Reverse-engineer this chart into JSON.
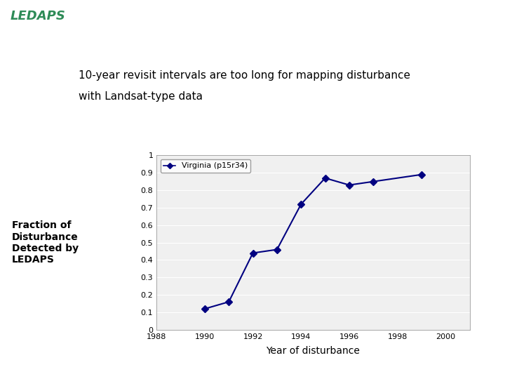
{
  "title_line1": "10-year revisit intervals are too long for mapping disturbance",
  "title_line2": "with Landsat-type data",
  "title_fontsize": 11,
  "ledaps_label": "LEDAPS",
  "xlabel": "Year of disturbance",
  "ylabel_lines": [
    "Fraction of",
    "Disturbance",
    "Detected by",
    "LEDAPS"
  ],
  "ylabel_fontsize": 10,
  "xlabel_fontsize": 10,
  "legend_label": "Virginia (p15r34)",
  "x_data": [
    1990,
    1991,
    1992,
    1993,
    1994,
    1995,
    1996,
    1997,
    1999
  ],
  "y_data": [
    0.12,
    0.16,
    0.44,
    0.46,
    0.72,
    0.87,
    0.83,
    0.85,
    0.89
  ],
  "line_color": "#000080",
  "marker": "D",
  "marker_size": 5,
  "xlim": [
    1988,
    2001
  ],
  "ylim": [
    0,
    1.0
  ],
  "xticks": [
    1988,
    1990,
    1992,
    1994,
    1996,
    1998,
    2000
  ],
  "ytick_labels": [
    "0",
    "0.1",
    "0.2",
    "0.3",
    "0.4",
    "0.5",
    "0.6",
    "0.7",
    "0.8",
    "0.9",
    "1"
  ],
  "yticks": [
    0,
    0.1,
    0.2,
    0.3,
    0.4,
    0.5,
    0.6,
    0.7,
    0.8,
    0.9,
    1.0
  ],
  "header_bg_color": "#555555",
  "bg_color": "#ffffff",
  "plot_bg_color": "#f0f0f0",
  "grid_color": "#ffffff",
  "grid_linewidth": 0.8,
  "img1_color": "#5a3010",
  "img2_color": "#7030a0",
  "img3_color": "#2d6a00"
}
